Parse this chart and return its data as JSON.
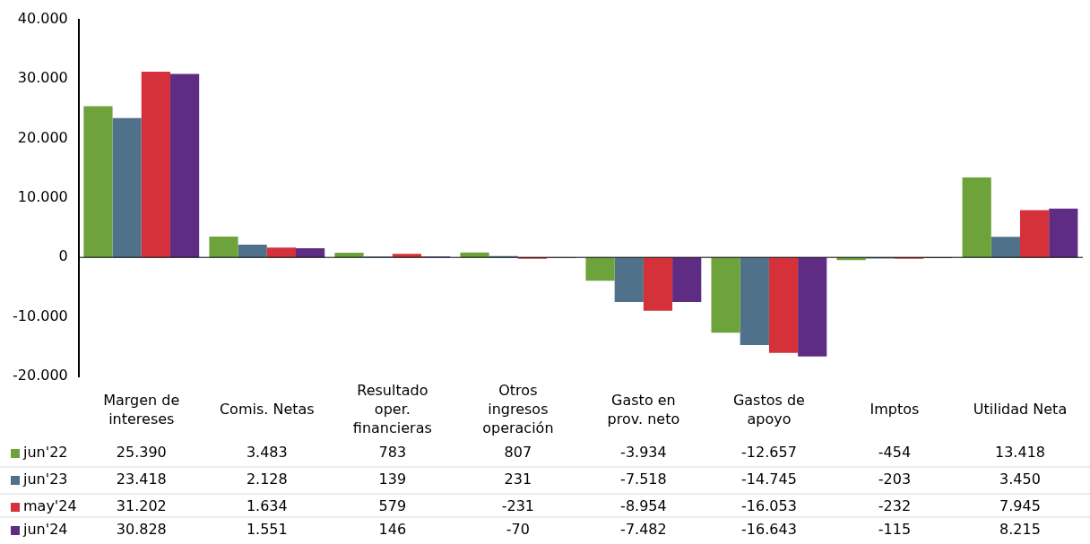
{
  "chart_data": {
    "type": "bar",
    "categories": [
      "Margen de intereses",
      "Comis. Netas",
      "Resultado oper. financieras",
      "Otros ingresos operación",
      "Gasto en prov. neto",
      "Gastos de apoyo",
      "Imptos",
      "Utilidad Neta"
    ],
    "series": [
      {
        "name": "jun'22",
        "color": "#6ea23a",
        "values": [
          25390,
          3483,
          783,
          807,
          -3934,
          -12657,
          -454,
          13418
        ],
        "value_labels": [
          "25.390",
          "3.483",
          "783",
          "807",
          "-3.934",
          "-12.657",
          "-454",
          "13.418"
        ]
      },
      {
        "name": "jun'23",
        "color": "#4f7189",
        "values": [
          23418,
          2128,
          139,
          231,
          -7518,
          -14745,
          -203,
          3450
        ],
        "value_labels": [
          "23.418",
          "2.128",
          "139",
          "231",
          "-7.518",
          "-14.745",
          "-203",
          "3.450"
        ]
      },
      {
        "name": "may'24",
        "color": "#d5313a",
        "values": [
          31202,
          1634,
          579,
          -231,
          -8954,
          -16053,
          -232,
          7945
        ],
        "value_labels": [
          "31.202",
          "1.634",
          "579",
          "-231",
          "-8.954",
          "-16.053",
          "-232",
          "7.945"
        ]
      },
      {
        "name": "jun'24",
        "color": "#5e2c82",
        "values": [
          30828,
          1551,
          146,
          -70,
          -7482,
          -16643,
          -115,
          8215
        ],
        "value_labels": [
          "30.828",
          "1.551",
          "146",
          "-70",
          "-7.482",
          "-16.643",
          "-115",
          "8.215"
        ]
      }
    ],
    "ylim": [
      -20000,
      40000
    ],
    "yticks": [
      {
        "value": -20000,
        "label": "-20.000"
      },
      {
        "value": -10000,
        "label": "-10.000"
      },
      {
        "value": 0,
        "label": "0"
      },
      {
        "value": 10000,
        "label": "10.000"
      },
      {
        "value": 20000,
        "label": "20.000"
      },
      {
        "value": 30000,
        "label": "30.000"
      },
      {
        "value": 40000,
        "label": "40.000"
      }
    ],
    "legend": "bottom left"
  }
}
